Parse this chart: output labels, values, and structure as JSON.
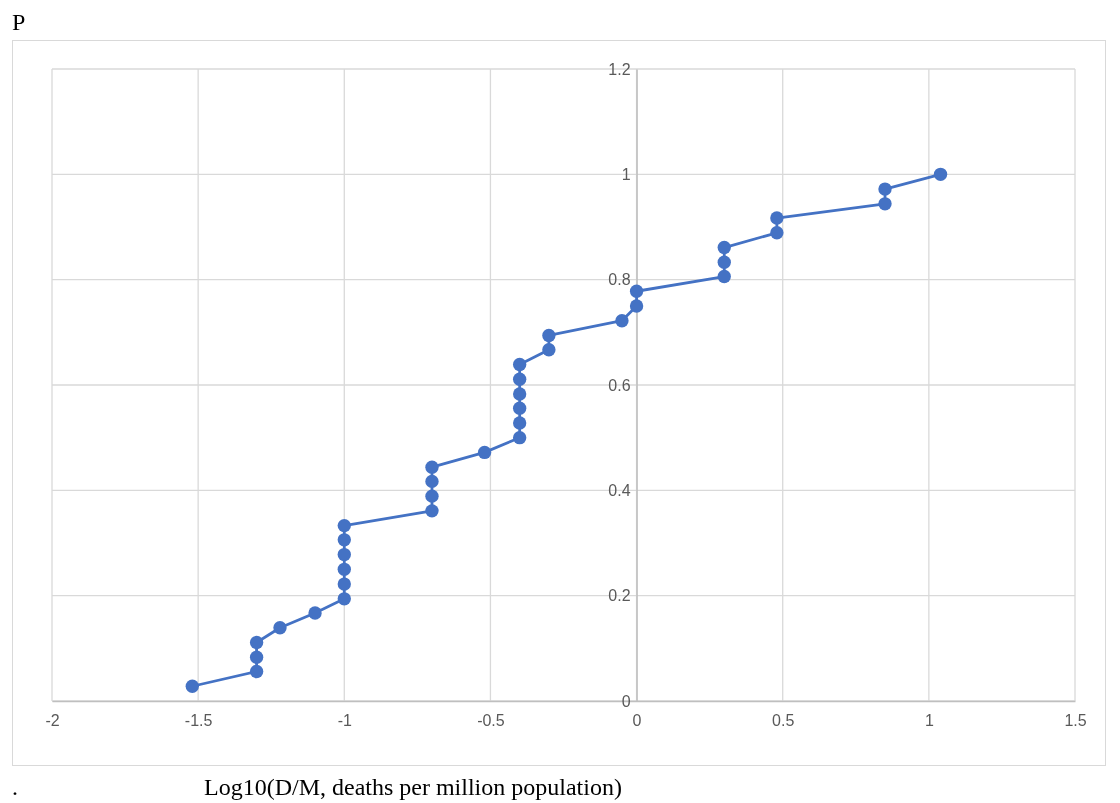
{
  "chart_data": {
    "type": "line",
    "ylabel": "P",
    "xlabel": "Log10(D/M, deaths per million population)",
    "annotations": [
      "."
    ],
    "x": [
      -1.52,
      -1.3,
      -1.3,
      -1.3,
      -1.22,
      -1.1,
      -1,
      -1,
      -1,
      -1,
      -1,
      -1,
      -0.7,
      -0.7,
      -0.7,
      -0.7,
      -0.52,
      -0.4,
      -0.4,
      -0.4,
      -0.4,
      -0.4,
      -0.4,
      -0.3,
      -0.3,
      -0.05,
      0,
      0,
      0.3,
      0.3,
      0.3,
      0.48,
      0.48,
      0.85,
      0.85,
      1.04
    ],
    "series": [
      {
        "color": "#4472c4",
        "values": [
          0.028,
          0.056,
          0.083,
          0.111,
          0.139,
          0.167,
          0.194,
          0.222,
          0.25,
          0.278,
          0.306,
          0.333,
          0.361,
          0.389,
          0.417,
          0.444,
          0.472,
          0.5,
          0.528,
          0.556,
          0.583,
          0.611,
          0.639,
          0.667,
          0.694,
          0.722,
          0.75,
          0.778,
          0.806,
          0.833,
          0.861,
          0.889,
          0.917,
          0.944,
          0.972,
          1.0
        ]
      }
    ],
    "xlim": [
      -2,
      1.5
    ],
    "xticks": [
      -2,
      -1.5,
      -1,
      -0.5,
      0,
      0.5,
      1,
      1.5
    ],
    "ylim": [
      0,
      1.2
    ],
    "yticks": [
      0,
      0.2,
      0.4,
      0.6,
      0.8,
      1,
      1.2
    ],
    "grid": true,
    "marker": "circle",
    "line_style": "solid"
  }
}
